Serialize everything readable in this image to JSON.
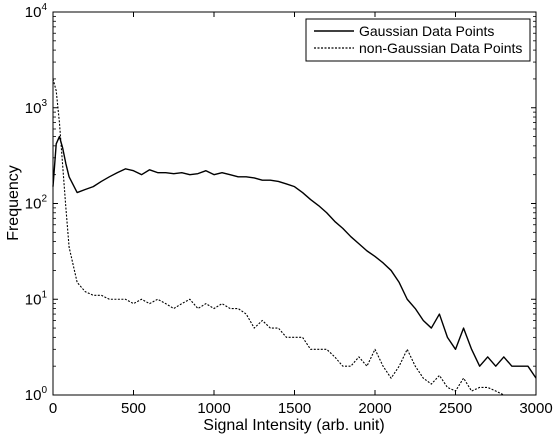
{
  "chart_data": {
    "type": "line",
    "title": "",
    "xlabel": "Signal Intensity (arb. unit)",
    "ylabel": "Frequency",
    "xlim": [
      0,
      3000
    ],
    "ylim": [
      1,
      10000
    ],
    "y_scale": "log",
    "grid": false,
    "legend_position": "top-right",
    "x_ticks": [
      0,
      500,
      1000,
      1500,
      2000,
      2500,
      3000
    ],
    "y_ticks": [
      {
        "value": 1,
        "base": "10",
        "exp": "0"
      },
      {
        "value": 10,
        "base": "10",
        "exp": "1"
      },
      {
        "value": 100,
        "base": "10",
        "exp": "2"
      },
      {
        "value": 1000,
        "base": "10",
        "exp": "3"
      },
      {
        "value": 10000,
        "base": "10",
        "exp": "4"
      }
    ],
    "series": [
      {
        "name": "Gaussian Data Points",
        "style": "solid",
        "color": "#000000",
        "x": [
          0,
          20,
          40,
          60,
          80,
          100,
          150,
          200,
          250,
          300,
          350,
          400,
          450,
          500,
          550,
          600,
          650,
          700,
          750,
          800,
          850,
          900,
          950,
          1000,
          1050,
          1100,
          1150,
          1200,
          1250,
          1300,
          1350,
          1400,
          1450,
          1500,
          1550,
          1600,
          1650,
          1700,
          1750,
          1800,
          1850,
          1900,
          1950,
          2000,
          2050,
          2100,
          2150,
          2200,
          2250,
          2300,
          2350,
          2400,
          2450,
          2500,
          2550,
          2600,
          2650,
          2700,
          2750,
          2800,
          2850,
          2900,
          2950,
          3000
        ],
        "y": [
          150,
          420,
          500,
          380,
          260,
          190,
          130,
          140,
          150,
          170,
          190,
          210,
          230,
          220,
          200,
          225,
          210,
          210,
          205,
          210,
          200,
          205,
          220,
          200,
          210,
          200,
          190,
          190,
          185,
          175,
          175,
          170,
          160,
          150,
          130,
          110,
          95,
          80,
          65,
          55,
          45,
          38,
          32,
          28,
          24,
          20,
          15,
          10,
          8,
          6,
          5,
          7,
          4,
          3,
          5,
          3,
          2,
          2.5,
          2,
          2.5,
          2,
          2,
          2,
          1.5
        ]
      },
      {
        "name": "non-Gaussian Data Points",
        "style": "dashed",
        "color": "#000000",
        "x": [
          0,
          20,
          40,
          60,
          80,
          100,
          150,
          200,
          250,
          300,
          350,
          400,
          450,
          500,
          550,
          600,
          650,
          700,
          750,
          800,
          850,
          900,
          950,
          1000,
          1050,
          1100,
          1150,
          1200,
          1250,
          1300,
          1350,
          1400,
          1450,
          1500,
          1550,
          1600,
          1650,
          1700,
          1750,
          1800,
          1850,
          1900,
          1950,
          2000,
          2050,
          2100,
          2150,
          2200,
          2250,
          2300,
          2350,
          2400,
          2450,
          2500,
          2550,
          2600,
          2650,
          2700,
          2750,
          2800
        ],
        "y": [
          2000,
          1500,
          700,
          250,
          90,
          35,
          15,
          12,
          11,
          11,
          10,
          10,
          10,
          9,
          10,
          9,
          10,
          9,
          8,
          9,
          10,
          8,
          9,
          8,
          9,
          8,
          8,
          7,
          5,
          6,
          5,
          5,
          4,
          4,
          4,
          3,
          3,
          3,
          2.5,
          2,
          2,
          2.5,
          2,
          3,
          2,
          1.5,
          2,
          3,
          2,
          1.5,
          1.3,
          1.6,
          1.2,
          1.1,
          1.5,
          1.1,
          1.2,
          1.2,
          1.1,
          1
        ]
      }
    ]
  }
}
